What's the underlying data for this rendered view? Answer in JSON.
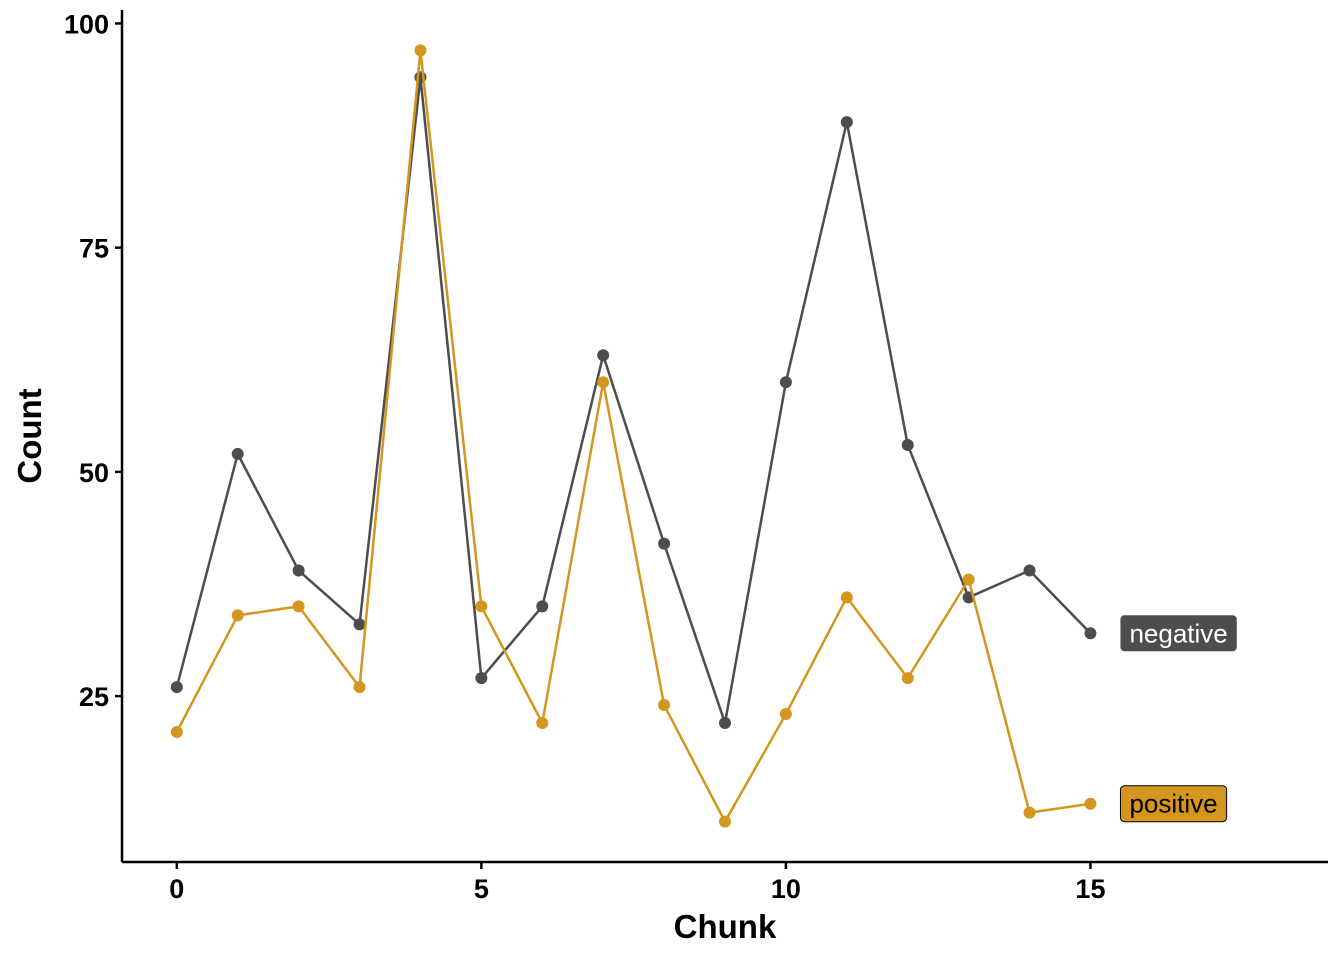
{
  "chart_data": {
    "type": "line",
    "title": "",
    "xlabel": "Chunk",
    "ylabel": "Count",
    "xlim": [
      -0.9,
      18.9
    ],
    "ylim": [
      6.5,
      101.5
    ],
    "x_ticks": [
      0,
      5,
      10,
      15
    ],
    "y_ticks": [
      25,
      50,
      75,
      100
    ],
    "x_tick_labels": [
      "0",
      "5",
      "10",
      "15"
    ],
    "y_tick_labels": [
      "25",
      "50",
      "75",
      "100"
    ],
    "grid": false,
    "legend": "none",
    "x": [
      0,
      1,
      2,
      3,
      4,
      5,
      6,
      7,
      8,
      9,
      10,
      11,
      12,
      13,
      14,
      15
    ],
    "series": [
      {
        "name": "negative",
        "color": "#4d4d4d",
        "label_text_color": "#ffffff",
        "values": [
          26,
          52,
          39,
          33,
          94,
          27,
          35,
          63,
          42,
          22,
          60,
          89,
          53,
          36,
          39,
          32
        ]
      },
      {
        "name": "positive",
        "color": "#d4961e",
        "label_text_color": "#000000",
        "values": [
          21,
          34,
          35,
          26,
          97,
          35,
          22,
          60,
          24,
          11,
          23,
          36,
          27,
          38,
          12,
          13
        ]
      }
    ]
  }
}
